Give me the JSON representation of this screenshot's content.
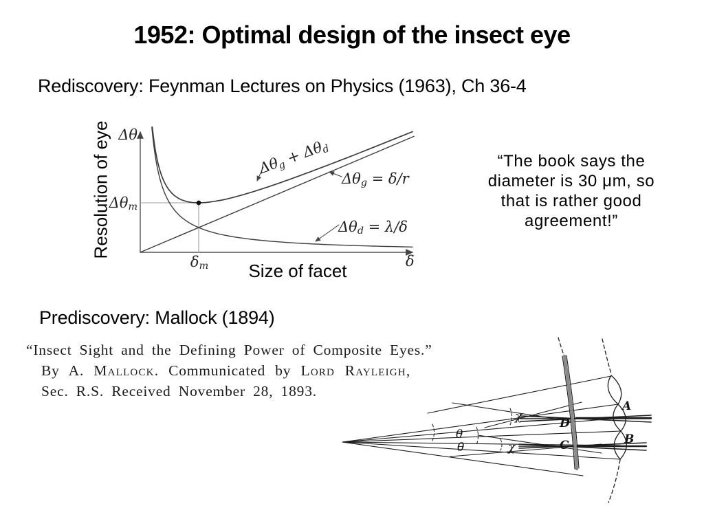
{
  "slide": {
    "title": "1952: Optimal design of the insect eye",
    "rediscovery_heading": "Rediscovery: Feynman Lectures on Physics (1963), Ch 36-4",
    "prediscovery_heading": "Prediscovery: Mallock (1894)",
    "quote_text": "“The book says the\ndiameter is 30 μm, so\nthat is rather good\nagreement!”"
  },
  "chart_data": {
    "type": "line",
    "title": "",
    "xlabel": "Size of facet",
    "ylabel": "Resolution of eye",
    "x_axis_symbol": "δ",
    "y_axis_symbol": "Δθ",
    "grid": false,
    "legend": "labels drawn next to curves with arrows",
    "series": [
      {
        "name": "Δθg + Δθd",
        "description": "total angular resolution; U-shaped curve with minimum Δθm at facet size δm"
      },
      {
        "name": "Δθg = δ/r",
        "description": "geometric term; straight line through origin"
      },
      {
        "name": "Δθd = λ/δ",
        "description": "diffraction term; hyperbola decreasing with δ"
      }
    ],
    "annotations": {
      "minimum_point": {
        "x_label": "δm",
        "y_label": "Δθm",
        "marker": "filled dot with gray guide lines to both axes"
      }
    },
    "render": {
      "ox": 204,
      "oy": 367,
      "yTop": 190,
      "xRight": 600,
      "m": 0.4235,
      "C": 3060,
      "sumXMin": 17.5,
      "hypXMin": 16.8,
      "xMax": 396,
      "lineXMax": 398
    }
  },
  "chart_labels": {
    "y_symbol": "Δθ",
    "y_min_base": "Δθ",
    "y_min_sub": "m",
    "x_min_base": "δ",
    "x_min_sub": "m",
    "x_symbol": "δ",
    "sum_base1": "Δθ",
    "sum_sub1": "g",
    "sum_plus": " + ",
    "sum_base2": "Δθ",
    "sum_sub2": "d",
    "geom_base": "Δθ",
    "geom_sub": "g",
    "geom_eq": " = δ/r",
    "diff_base": "Δθ",
    "diff_sub": "d",
    "diff_eq": " = λ/δ"
  },
  "excerpt": {
    "line1": "“Insect Sight and the Defining Power of Composite Eyes.”",
    "line2_pre": "By A. ",
    "line2_sc1": "Mallock",
    "line2_mid": ".  Communicated by ",
    "line2_sc2": "Lord Rayleigh",
    "line2_end": ",",
    "line3": "Sec. R.S.  Received November 28, 1893."
  },
  "diagram_labels": {
    "A": "A",
    "B": "B",
    "C": "C",
    "D": "D",
    "theta1": "θ",
    "theta2": "θ",
    "chi1": "χ",
    "chi2": "χ"
  }
}
